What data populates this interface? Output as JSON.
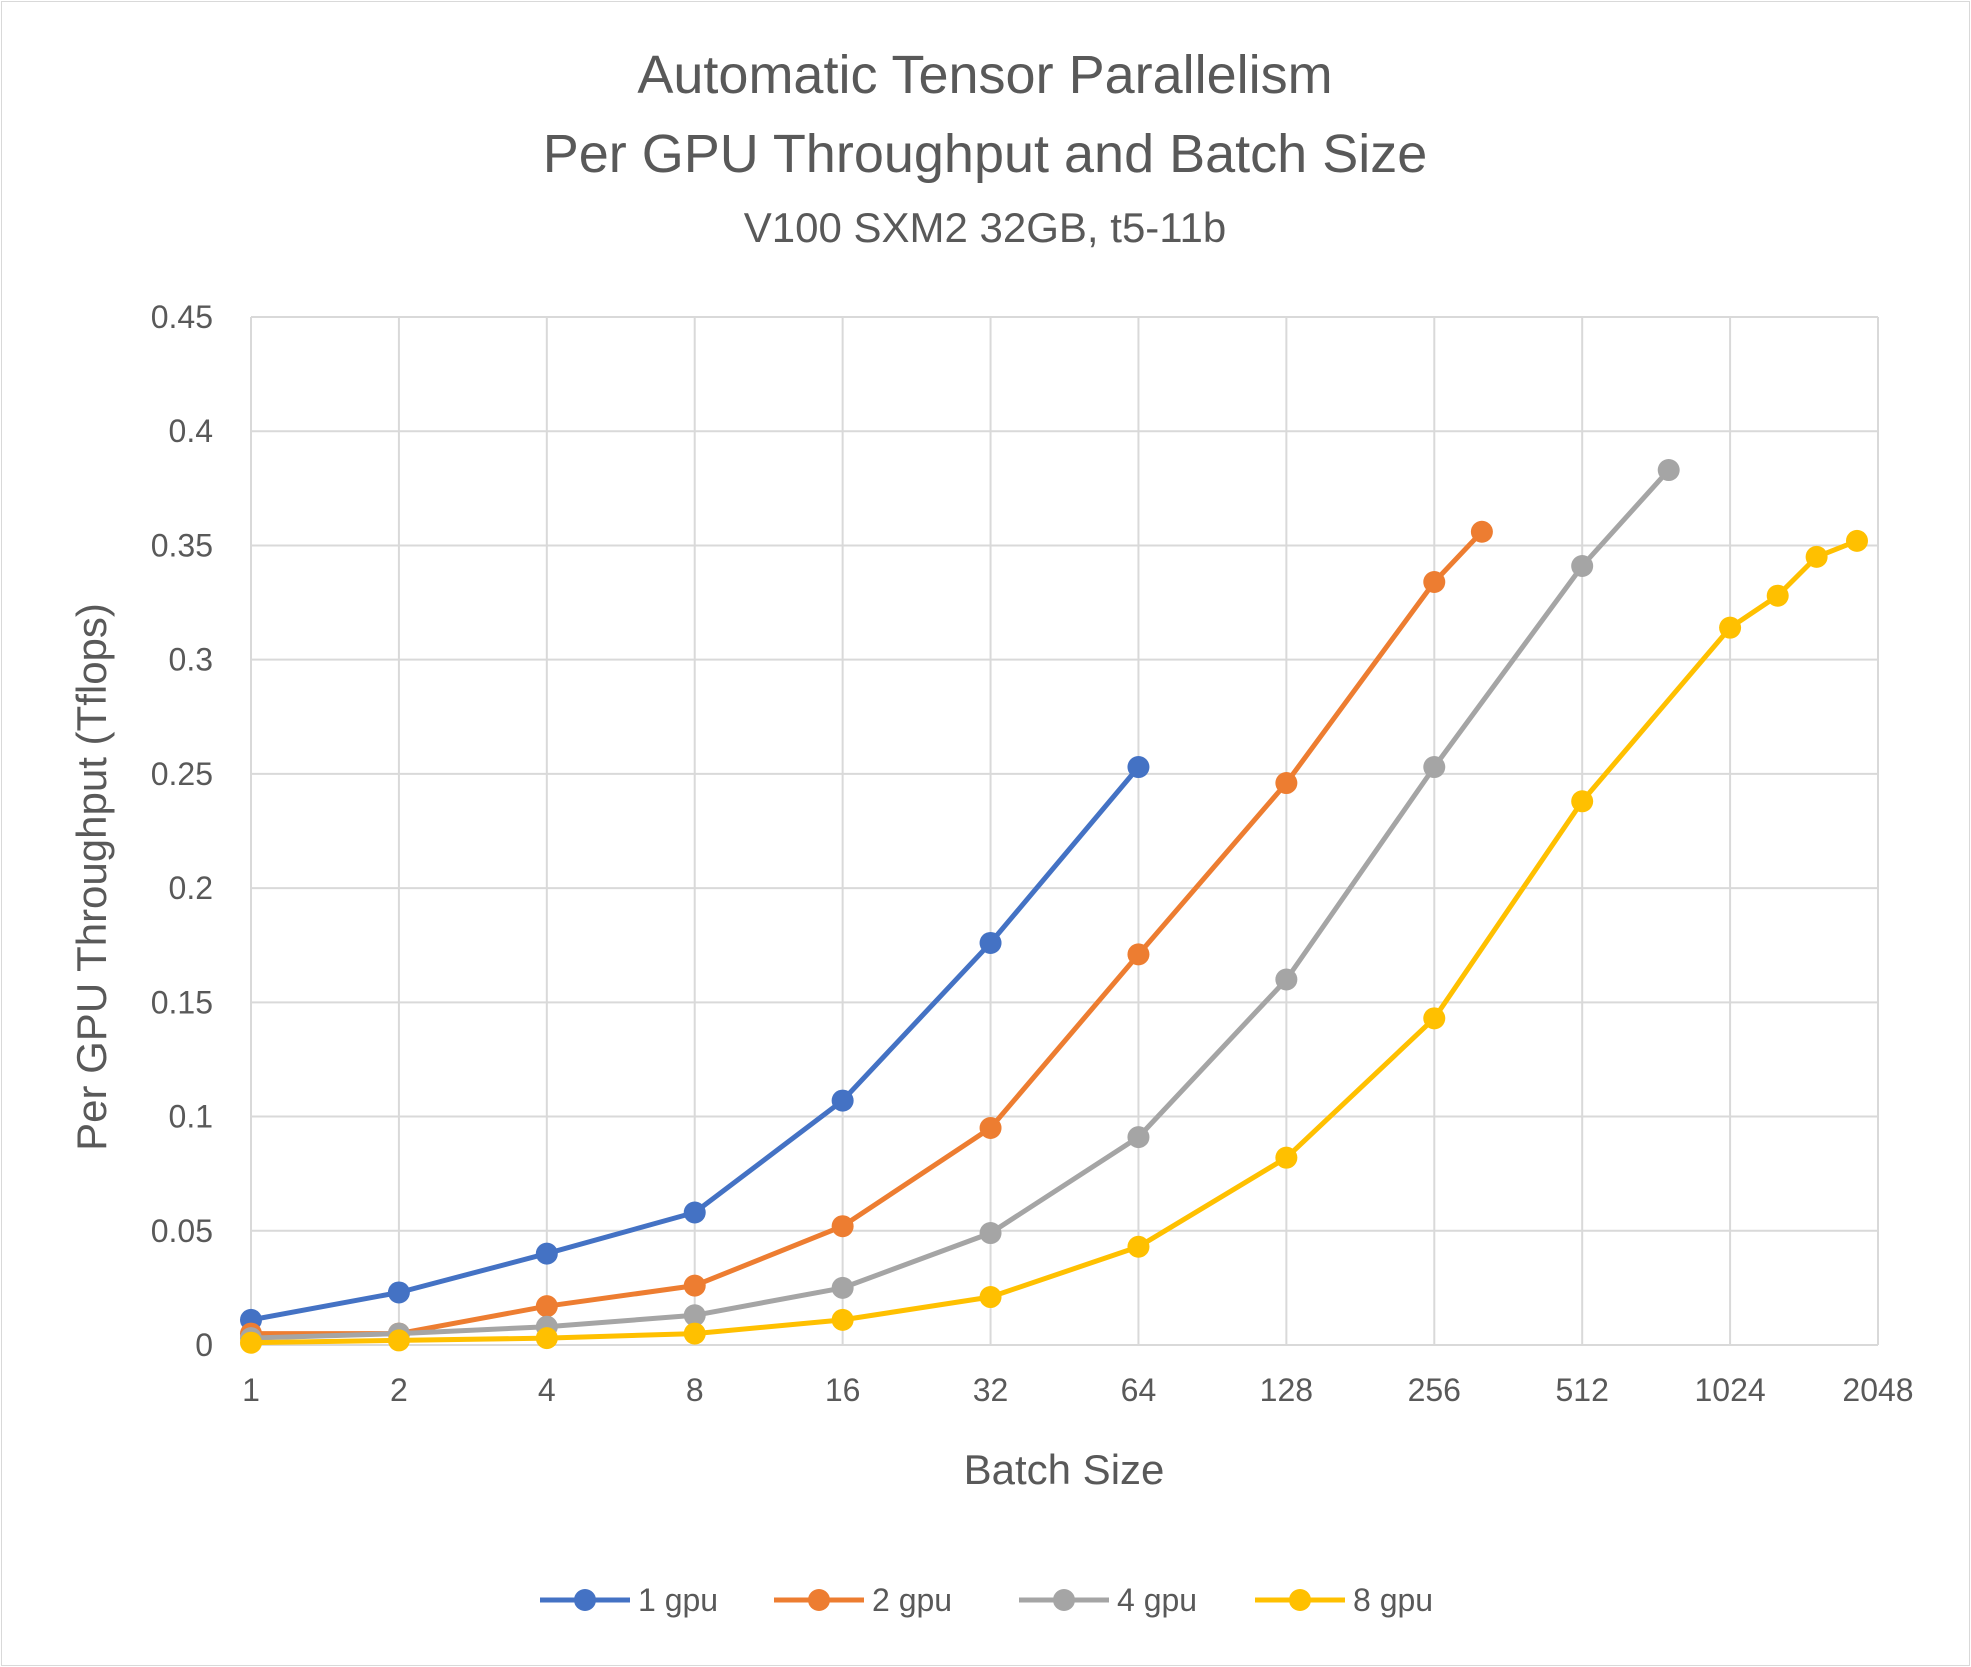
{
  "chart_data": {
    "type": "line",
    "title": "Automatic Tensor Parallelism",
    "title_line2": "Per GPU Throughput and Batch Size",
    "subtitle": "V100 SXM2 32GB, t5-11b",
    "xlabel": "Batch Size",
    "ylabel": "Per GPU Throughput (Tflops)",
    "x_scale": "log2",
    "x_ticks": [
      1,
      2,
      4,
      8,
      16,
      32,
      64,
      128,
      256,
      512,
      1024,
      2048
    ],
    "x_tick_labels": [
      "1",
      "2",
      "4",
      "8",
      "16",
      "32",
      "64",
      "128",
      "256",
      "512",
      "1024",
      "2048"
    ],
    "ylim": [
      0,
      0.45
    ],
    "y_ticks": [
      0,
      0.05,
      0.1,
      0.15,
      0.2,
      0.25,
      0.3,
      0.35,
      0.4,
      0.45
    ],
    "y_tick_labels": [
      "0",
      "0.05",
      "0.1",
      "0.15",
      "0.2",
      "0.25",
      "0.3",
      "0.35",
      "0.4",
      "0.45"
    ],
    "grid": true,
    "legend_position": "bottom",
    "series": [
      {
        "name": "1 gpu",
        "color": "#4472C4",
        "x": [
          1,
          2,
          4,
          8,
          16,
          32,
          64
        ],
        "y": [
          0.011,
          0.023,
          0.04,
          0.058,
          0.107,
          0.176,
          0.253
        ]
      },
      {
        "name": "2 gpu",
        "color": "#ED7D31",
        "x": [
          1,
          2,
          4,
          8,
          16,
          32,
          64,
          128,
          256,
          320
        ],
        "y": [
          0.005,
          0.005,
          0.017,
          0.026,
          0.052,
          0.095,
          0.171,
          0.246,
          0.334,
          0.356
        ]
      },
      {
        "name": "4 gpu",
        "color": "#A5A5A5",
        "x": [
          1,
          2,
          4,
          8,
          16,
          32,
          64,
          128,
          256,
          512,
          768
        ],
        "y": [
          0.003,
          0.005,
          0.008,
          0.013,
          0.025,
          0.049,
          0.091,
          0.16,
          0.253,
          0.341,
          0.383
        ]
      },
      {
        "name": "8 gpu",
        "color": "#FFC000",
        "x": [
          1,
          2,
          4,
          8,
          16,
          32,
          64,
          128,
          256,
          512,
          1024,
          1280,
          1536,
          1856
        ],
        "y": [
          0.001,
          0.002,
          0.003,
          0.005,
          0.011,
          0.021,
          0.043,
          0.082,
          0.143,
          0.238,
          0.314,
          0.328,
          0.345,
          0.352
        ]
      }
    ]
  }
}
